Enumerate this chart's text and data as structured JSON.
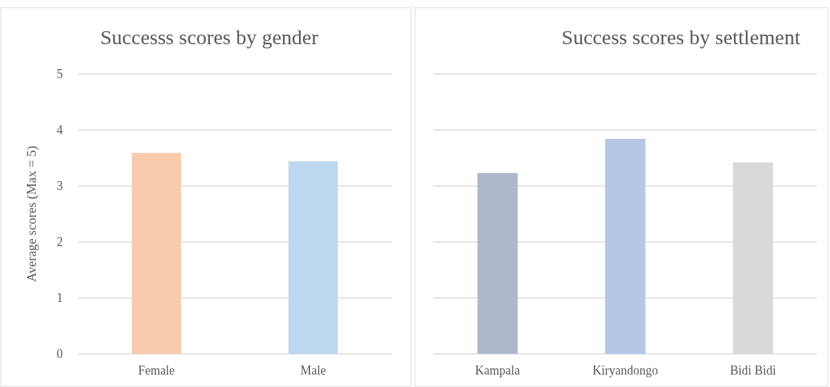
{
  "chart_data": [
    {
      "type": "bar",
      "title": "Successs scores by gender",
      "ylabel": "Average scores (Max = 5)",
      "categories": [
        "Female",
        "Male"
      ],
      "colors": [
        "#f8cbad",
        "#bdd7ee"
      ],
      "values": [
        3.59,
        3.44
      ],
      "ylim": [
        0,
        5
      ],
      "yticks": [
        0,
        1,
        2,
        3,
        4,
        5
      ],
      "grid": "y"
    },
    {
      "type": "bar",
      "title": "Success scores by settlement",
      "categories": [
        "Kampala",
        "Kiryandongo",
        "Bidi Bidi"
      ],
      "colors": [
        "#adb9ca",
        "#b4c7e7",
        "#d9d9d9"
      ],
      "values": [
        3.23,
        3.84,
        3.42
      ],
      "ylim": [
        0,
        5
      ],
      "yticks": [
        0,
        1,
        2,
        3,
        4,
        5
      ],
      "grid": "y",
      "tick_labels": "x"
    }
  ]
}
